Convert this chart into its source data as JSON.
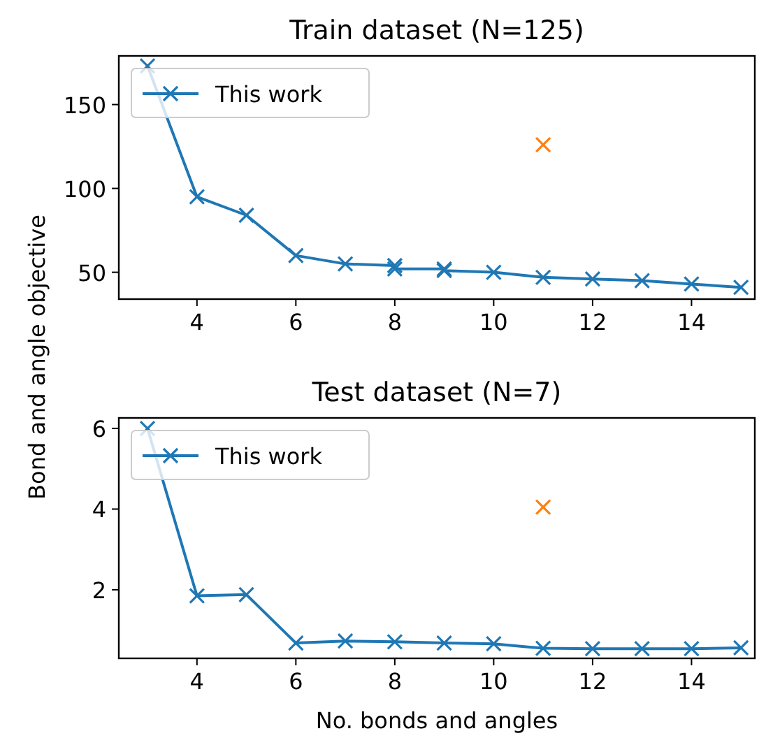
{
  "chart_data": [
    {
      "type": "line",
      "title": "Train dataset (N=125)",
      "ylabel": "Bond and angle objective",
      "xlim": [
        2.42,
        15.28
      ],
      "ylim": [
        34,
        179
      ],
      "xticks": [
        4,
        6,
        8,
        10,
        12,
        14
      ],
      "yticks": [
        50,
        100,
        150
      ],
      "legend": "top left",
      "marker": "cross",
      "grid": false,
      "series": [
        {
          "name": "This work",
          "color": "#1f77b4",
          "x": [
            3,
            4,
            5,
            6,
            7,
            8,
            8,
            9,
            9,
            10,
            11,
            12,
            13,
            14,
            15
          ],
          "values": [
            173,
            95,
            84,
            60,
            55,
            54,
            52,
            52,
            51,
            50,
            47,
            46,
            45,
            43,
            41
          ]
        },
        {
          "type": "scatter",
          "color": "#ff7f0e",
          "x": [
            11
          ],
          "values": [
            126
          ]
        }
      ]
    },
    {
      "type": "line",
      "title": "Test dataset (N=7)",
      "xlabel": "No. bonds and angles",
      "xlim": [
        2.42,
        15.28
      ],
      "ylim": [
        0.3,
        6.26
      ],
      "xticks": [
        4,
        6,
        8,
        10,
        12,
        14
      ],
      "yticks": [
        2,
        4,
        6
      ],
      "legend": "top left",
      "marker": "cross",
      "grid": false,
      "series": [
        {
          "name": "This work",
          "color": "#1f77b4",
          "x": [
            3,
            4,
            5,
            6,
            7,
            8,
            9,
            10,
            11,
            12,
            13,
            14,
            15
          ],
          "values": [
            6.0,
            1.85,
            1.88,
            0.68,
            0.73,
            0.71,
            0.68,
            0.66,
            0.55,
            0.54,
            0.54,
            0.54,
            0.56
          ]
        },
        {
          "type": "scatter",
          "color": "#ff7f0e",
          "x": [
            11
          ],
          "values": [
            4.05
          ]
        }
      ]
    }
  ]
}
